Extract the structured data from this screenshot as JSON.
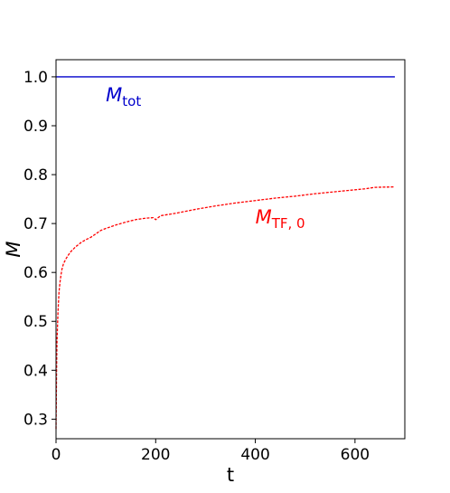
{
  "chart_data": {
    "type": "line",
    "xlabel": "t",
    "ylabel": "M",
    "xlim": [
      0,
      700
    ],
    "ylim": [
      0.26,
      1.035
    ],
    "xticks": [
      0,
      200,
      400,
      600
    ],
    "yticks": [
      0.3,
      0.4,
      0.5,
      0.6,
      0.7,
      0.8,
      0.9,
      1.0
    ],
    "xtick_labels": [
      "0",
      "200",
      "400",
      "600"
    ],
    "ytick_labels": [
      "0.3",
      "0.4",
      "0.5",
      "0.6",
      "0.7",
      "0.8",
      "0.9",
      "1.0"
    ],
    "grid": false,
    "series": [
      {
        "color": "#0000cc",
        "style": "solid",
        "x": [
          0,
          680
        ],
        "y": [
          1.0,
          1.0
        ]
      },
      {
        "color": "#ff0000",
        "style": "dashed",
        "x": [
          0,
          0.5,
          1,
          1.5,
          2,
          3,
          4,
          5,
          6,
          8,
          10,
          12,
          15,
          20,
          25,
          30,
          40,
          50,
          60,
          70,
          80,
          90,
          100,
          120,
          140,
          160,
          180,
          195,
          200,
          210,
          240,
          280,
          320,
          360,
          400,
          440,
          480,
          520,
          560,
          600,
          620,
          640,
          680
        ],
        "y": [
          0.28,
          0.33,
          0.39,
          0.43,
          0.46,
          0.49,
          0.52,
          0.54,
          0.56,
          0.58,
          0.595,
          0.607,
          0.618,
          0.628,
          0.636,
          0.643,
          0.653,
          0.661,
          0.667,
          0.672,
          0.679,
          0.686,
          0.69,
          0.697,
          0.703,
          0.708,
          0.711,
          0.712,
          0.708,
          0.716,
          0.721,
          0.729,
          0.736,
          0.742,
          0.747,
          0.752,
          0.756,
          0.761,
          0.765,
          0.769,
          0.771,
          0.774,
          0.775
        ]
      }
    ],
    "annotations": [
      {
        "text": "M",
        "sub": "tot",
        "color": "#0000cc",
        "x": 100,
        "y": 0.95
      },
      {
        "text": "M",
        "sub": "TF, 0",
        "color": "#ff0000",
        "x": 400,
        "y": 0.7
      }
    ]
  }
}
